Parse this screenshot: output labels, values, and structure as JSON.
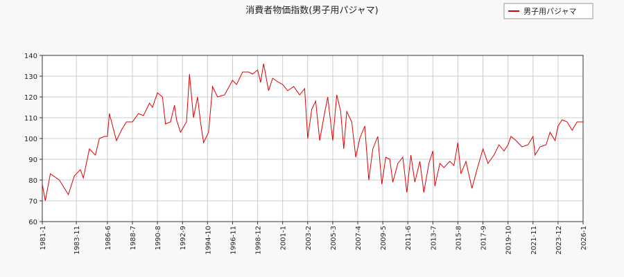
{
  "chart_data": {
    "type": "line",
    "title": "消費者物価指数(男子用パジャマ)",
    "x": [
      "1981-1",
      "1981-4",
      "1981-9",
      "1982-6",
      "1983-3",
      "1983-9",
      "1984-3",
      "1984-6",
      "1984-12",
      "1985-6",
      "1985-10",
      "1986-3",
      "1986-6",
      "1986-8",
      "1987-3",
      "1987-8",
      "1988-1",
      "1988-7",
      "1989-1",
      "1989-6",
      "1989-12",
      "1990-3",
      "1990-8",
      "1991-1",
      "1991-4",
      "1991-9",
      "1992-1",
      "1992-3",
      "1992-7",
      "1993-1",
      "1993-4",
      "1993-8",
      "1993-12",
      "1994-3",
      "1994-6",
      "1994-11",
      "1995-3",
      "1995-8",
      "1996-3",
      "1996-11",
      "1997-3",
      "1997-9",
      "1998-3",
      "1998-7",
      "1998-12",
      "1999-3",
      "1999-6",
      "1999-11",
      "2000-3",
      "2000-9",
      "2001-1",
      "2001-6",
      "2001-12",
      "2002-6",
      "2002-11",
      "2003-2",
      "2003-6",
      "2003-10",
      "2004-2",
      "2004-6",
      "2004-10",
      "2005-3",
      "2005-7",
      "2005-11",
      "2006-2",
      "2006-5",
      "2006-10",
      "2007-2",
      "2007-6",
      "2007-11",
      "2008-3",
      "2008-7",
      "2008-12",
      "2009-4",
      "2009-8",
      "2009-12",
      "2010-3",
      "2010-8",
      "2011-1",
      "2011-5",
      "2011-9",
      "2012-1",
      "2012-6",
      "2012-10",
      "2013-3",
      "2013-7",
      "2013-9",
      "2014-2",
      "2014-6",
      "2014-12",
      "2015-4",
      "2015-8",
      "2015-11",
      "2016-4",
      "2016-10",
      "2017-3",
      "2017-9",
      "2018-2",
      "2018-8",
      "2019-1",
      "2019-6",
      "2019-10",
      "2020-1",
      "2020-6",
      "2020-12",
      "2021-6",
      "2021-11",
      "2022-1",
      "2022-6",
      "2022-12",
      "2023-4",
      "2023-9",
      "2023-12",
      "2024-4",
      "2024-9",
      "2025-2",
      "2025-7",
      "2026-1"
    ],
    "series": [
      {
        "name": "男子用パジャマ",
        "color": "#dd0000",
        "values": [
          78,
          70,
          83,
          80,
          73,
          82,
          85,
          81,
          95,
          92,
          100,
          101,
          101,
          112,
          99,
          104,
          108,
          108,
          112,
          111,
          117,
          115,
          122,
          120,
          107,
          108,
          116,
          109,
          103,
          108,
          131,
          110,
          120,
          108,
          98,
          103,
          125,
          120,
          121,
          128,
          126,
          132,
          132,
          131,
          133,
          127,
          136,
          123,
          129,
          127,
          126,
          123,
          125,
          121,
          124,
          100,
          114,
          118,
          99,
          110,
          120,
          99,
          121,
          113,
          95,
          113,
          108,
          91,
          100,
          106,
          80,
          95,
          101,
          78,
          91,
          90,
          79,
          88,
          91,
          74,
          92,
          79,
          89,
          74,
          88,
          94,
          77,
          88,
          86,
          89,
          87,
          98,
          83,
          89,
          76,
          85,
          95,
          88,
          92,
          97,
          94,
          97,
          101,
          99,
          96,
          97,
          101,
          92,
          96,
          97,
          103,
          99,
          106,
          109,
          108,
          104,
          108,
          108
        ]
      }
    ],
    "xlim": [
      "1981-1",
      "2026-1"
    ],
    "xticks": [
      "1981-1",
      "1983-11",
      "1986-6",
      "1988-7",
      "1990-8",
      "1992-9",
      "1994-10",
      "1996-11",
      "1998-12",
      "2001-1",
      "2003-2",
      "2005-3",
      "2007-4",
      "2009-5",
      "2011-6",
      "2013-7",
      "2015-8",
      "2017-9",
      "2019-10",
      "2021-11",
      "2023-12",
      "2026-1"
    ],
    "ylim": [
      60,
      140
    ],
    "yticks": [
      60,
      70,
      80,
      90,
      100,
      110,
      120,
      130,
      140
    ],
    "grid": true,
    "legend": "upper right"
  }
}
